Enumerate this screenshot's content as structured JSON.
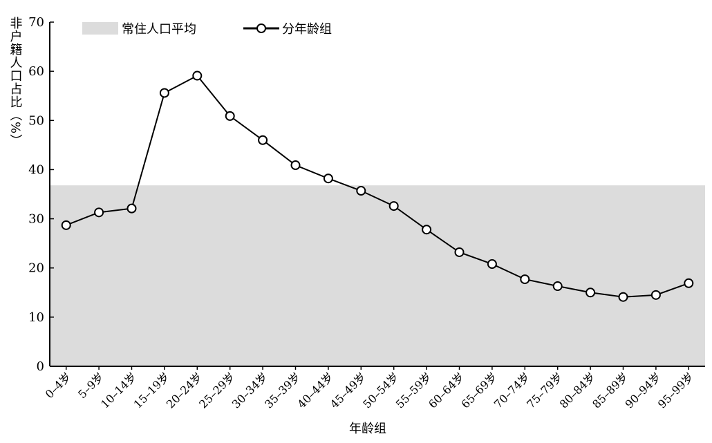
{
  "chart_data": {
    "type": "line",
    "y_label": "非户籍人口占比（%）",
    "x_label": "年龄组",
    "categories": [
      "0–4岁",
      "5–9岁",
      "10–14岁",
      "15–19岁",
      "20–24岁",
      "25–29岁",
      "30–34岁",
      "35–39岁",
      "40–44岁",
      "45–49岁",
      "50–54岁",
      "55–59岁",
      "60–64岁",
      "65–69岁",
      "70–74岁",
      "75–79岁",
      "80–84岁",
      "85–89岁",
      "90–94岁",
      "95–99岁"
    ],
    "series": [
      {
        "name": "分年龄组",
        "color": "#000000",
        "values": [
          28.7,
          31.3,
          32.1,
          55.6,
          59.1,
          50.9,
          46.0,
          40.9,
          38.2,
          35.7,
          32.6,
          27.8,
          23.2,
          20.8,
          17.7,
          16.3,
          15.0,
          14.1,
          14.5,
          16.9
        ]
      }
    ],
    "reference_band": {
      "name": "常住人口平均",
      "value": 36.8,
      "color": "#dcdcdc"
    },
    "ylim": [
      0,
      70
    ],
    "yticks": [
      0,
      10,
      20,
      30,
      40,
      50,
      60,
      70
    ]
  }
}
